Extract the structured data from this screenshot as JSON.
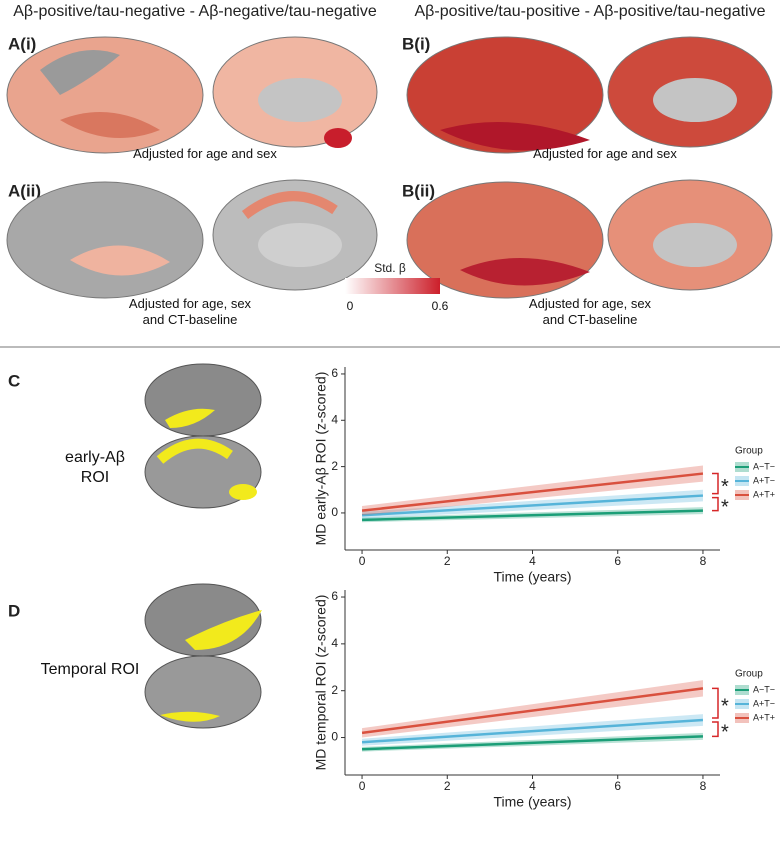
{
  "top": {
    "title_a": "Aβ-positive/tau-negative - Aβ-negative/tau-negative",
    "title_b": "Aβ-positive/tau-positive - Aβ-positive/tau-negative",
    "a1": {
      "label": "A(i)",
      "caption": "Adjusted for age and sex"
    },
    "a2": {
      "label": "A(ii)",
      "caption": "Adjusted for age, sex and CT-baseline"
    },
    "b1": {
      "label": "B(i)",
      "caption": "Adjusted for age and sex"
    },
    "b2": {
      "label": "B(ii)",
      "caption": "Adjusted for age, sex and CT-baseline"
    }
  },
  "colorbar": {
    "title": "Std. β",
    "ticks": [
      0,
      0.6
    ],
    "colors": [
      "#ffffff",
      "#cc1f2a"
    ]
  },
  "panel_c": {
    "label": "C",
    "roi": "early-Aβ ROI"
  },
  "panel_d": {
    "label": "D",
    "roi": "Temporal ROI"
  },
  "chart_data": [
    {
      "type": "line",
      "x_label": "Time (years)",
      "y_label": "MD early-Aβ ROI (z-scored)",
      "legend_title": "Group",
      "x": [
        0,
        8
      ],
      "xlim": [
        -0.4,
        8.4
      ],
      "ylim": [
        -1.6,
        6.3
      ],
      "xticks": [
        0,
        2,
        4,
        6,
        8
      ],
      "yticks": [
        0,
        2,
        4,
        6
      ],
      "series": [
        {
          "name": "A−T−",
          "color": "#1b9e77",
          "values": [
            -0.3,
            0.1
          ],
          "ci_lower": [
            -0.4,
            -0.05
          ],
          "ci_upper": [
            -0.2,
            0.25
          ]
        },
        {
          "name": "A+T−",
          "color": "#56b4d9",
          "values": [
            -0.1,
            0.75
          ],
          "ci_lower": [
            -0.25,
            0.5
          ],
          "ci_upper": [
            0.05,
            1.0
          ]
        },
        {
          "name": "A+T+",
          "color": "#d9503e",
          "values": [
            0.1,
            1.7
          ],
          "ci_lower": [
            -0.1,
            1.35
          ],
          "ci_upper": [
            0.3,
            2.05
          ]
        }
      ],
      "annotations": [
        "*",
        "*"
      ]
    },
    {
      "type": "line",
      "x_label": "Time (years)",
      "y_label": "MD temporal ROI (z-scored)",
      "legend_title": "Group",
      "x": [
        0,
        8
      ],
      "xlim": [
        -0.4,
        8.4
      ],
      "ylim": [
        -1.6,
        6.3
      ],
      "xticks": [
        0,
        2,
        4,
        6,
        8
      ],
      "yticks": [
        0,
        2,
        4,
        6
      ],
      "series": [
        {
          "name": "A−T−",
          "color": "#1b9e77",
          "values": [
            -0.5,
            0.05
          ],
          "ci_lower": [
            -0.6,
            -0.1
          ],
          "ci_upper": [
            -0.4,
            0.2
          ]
        },
        {
          "name": "A+T−",
          "color": "#56b4d9",
          "values": [
            -0.2,
            0.75
          ],
          "ci_lower": [
            -0.35,
            0.5
          ],
          "ci_upper": [
            -0.05,
            1.0
          ]
        },
        {
          "name": "A+T+",
          "color": "#d9503e",
          "values": [
            0.2,
            2.1
          ],
          "ci_lower": [
            0.0,
            1.75
          ],
          "ci_upper": [
            0.4,
            2.45
          ]
        }
      ],
      "annotations": [
        "*",
        "*"
      ]
    }
  ]
}
